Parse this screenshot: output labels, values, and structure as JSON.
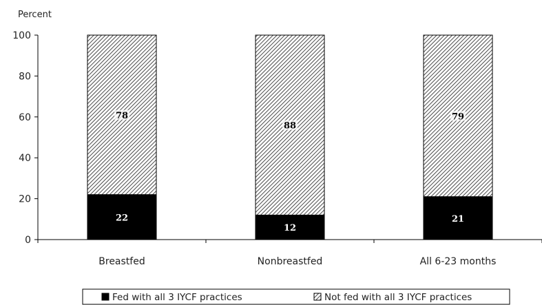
{
  "chart_data": {
    "type": "bar",
    "stacked": true,
    "ylabel": "Percent",
    "xlabel": "",
    "ylim": [
      0,
      100
    ],
    "yticks": [
      0,
      20,
      40,
      60,
      80,
      100
    ],
    "categories": [
      "Breastfed",
      "Nonbreastfed",
      "All 6-23 months"
    ],
    "series": [
      {
        "name": "Fed with all 3 IYCF practices",
        "values": [
          22,
          12,
          21
        ],
        "color": "#000000",
        "pattern": "solid"
      },
      {
        "name": "Not fed with all 3 IYCF practices",
        "values": [
          78,
          88,
          79
        ],
        "color": "#555555",
        "pattern": "diagonal-hatch"
      }
    ],
    "data_labels": [
      [
        "22",
        "12",
        "21"
      ],
      [
        "78",
        "88",
        "79"
      ]
    ],
    "legend_position": "bottom",
    "grid": false
  }
}
